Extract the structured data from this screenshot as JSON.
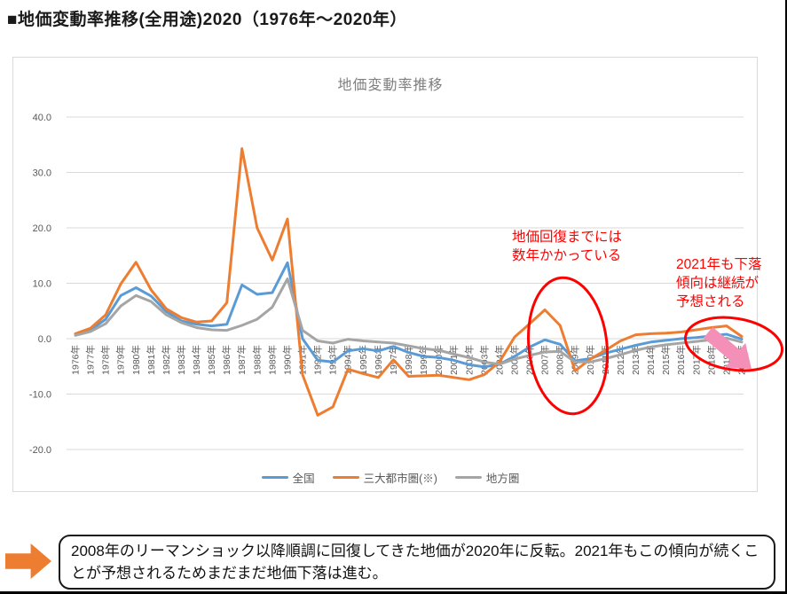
{
  "page": {
    "title": "■地価変動率推移(全用途)2020（1976年～2020年）"
  },
  "chart_data": {
    "type": "line",
    "title": "地価変動率推移",
    "xlabel": "",
    "ylabel": "",
    "ylim": [
      -20,
      40
    ],
    "ytick_labels": [
      "-20.0",
      "-10.0",
      "0.0",
      "10.0",
      "20.0",
      "30.0",
      "40.0"
    ],
    "grid": true,
    "legend_position": "bottom",
    "categories": [
      "1976年",
      "1977年",
      "1978年",
      "1979年",
      "1980年",
      "1981年",
      "1982年",
      "1983年",
      "1984年",
      "1985年",
      "1986年",
      "1987年",
      "1988年",
      "1989年",
      "1990年",
      "1991年",
      "1992年",
      "1993年",
      "1994年",
      "1995年",
      "1996年",
      "1997年",
      "1998年",
      "1999年",
      "2000年",
      "2001年",
      "2002年",
      "2003年",
      "2004年",
      "2005年",
      "2006年",
      "2007年",
      "2008年",
      "2009年",
      "2010年",
      "2011年",
      "2012年",
      "2013年",
      "2014年",
      "2015年",
      "2016年",
      "2017年",
      "2018年",
      "2019年",
      "2020年"
    ],
    "series": [
      {
        "name": "全国",
        "color": "#5b9bd5",
        "values": [
          0.8,
          1.6,
          3.5,
          7.8,
          9.2,
          7.7,
          4.9,
          3.2,
          2.6,
          2.3,
          2.6,
          9.7,
          8.0,
          8.3,
          13.7,
          0.0,
          -3.9,
          -4.2,
          -2.2,
          -1.8,
          -2.2,
          -1.4,
          -2.5,
          -3.2,
          -3.4,
          -3.9,
          -4.7,
          -5.1,
          -4.6,
          -3.2,
          -1.5,
          -0.2,
          -1.0,
          -4.0,
          -3.6,
          -2.6,
          -1.9,
          -1.2,
          -0.6,
          -0.3,
          0.0,
          0.2,
          0.5,
          0.8,
          -0.1
        ]
      },
      {
        "name": "三大都市圏(※)",
        "color": "#ed7d31",
        "values": [
          0.9,
          1.9,
          4.3,
          9.9,
          13.8,
          8.8,
          5.4,
          3.8,
          3.0,
          3.2,
          6.5,
          34.3,
          20.0,
          14.2,
          21.6,
          -6.5,
          -13.8,
          -12.3,
          -5.5,
          -6.3,
          -7.0,
          -3.8,
          -6.8,
          -6.7,
          -6.6,
          -7.0,
          -7.4,
          -6.5,
          -4.2,
          0.3,
          2.7,
          5.2,
          2.4,
          -5.8,
          -3.7,
          -2.1,
          -0.4,
          0.7,
          0.9,
          1.0,
          1.2,
          1.6,
          2.0,
          2.3,
          0.4
        ]
      },
      {
        "name": "地方圏",
        "color": "#a5a5a5",
        "values": [
          0.6,
          1.3,
          2.7,
          5.9,
          7.8,
          6.7,
          4.3,
          2.9,
          2.0,
          1.6,
          1.5,
          2.4,
          3.5,
          5.7,
          10.8,
          1.5,
          -0.4,
          -0.8,
          -0.1,
          -0.4,
          -0.6,
          -0.8,
          -1.3,
          -1.8,
          -2.1,
          -2.8,
          -3.4,
          -4.2,
          -4.6,
          -3.7,
          -3.0,
          -2.4,
          -2.3,
          -4.2,
          -4.2,
          -3.6,
          -2.9,
          -2.1,
          -1.5,
          -1.1,
          -0.8,
          -0.5,
          -0.2,
          0.1,
          -0.6
        ]
      }
    ]
  },
  "annotations": {
    "note_recovery": "地価回復までには\n数年かかっている",
    "note_2021": "2021年も下落\n傾向は継続が\n予想される",
    "ink_color": "#ff0000",
    "arrow_color": "#f48fb8"
  },
  "callout": {
    "text": "2008年のリーマンショック以降順調に回復してきた地価が2020年に反転。2021年もこの傾向が続くことが予想されるためまだまだ地価下落は進む。"
  }
}
